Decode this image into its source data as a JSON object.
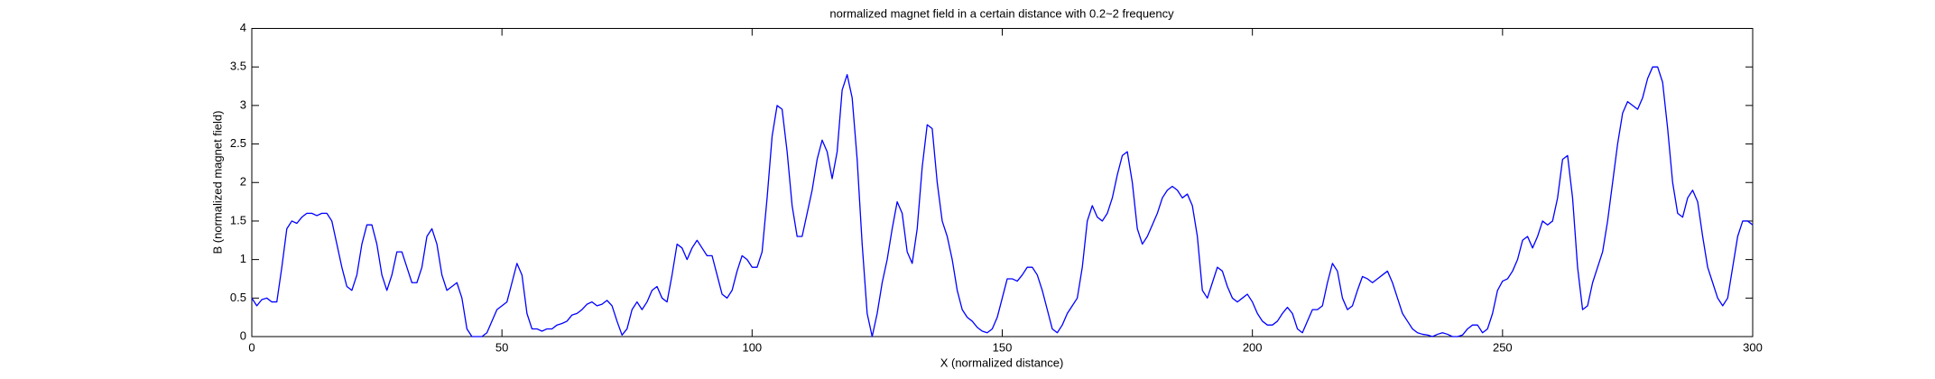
{
  "chart_data": {
    "type": "line",
    "title": "normalized magnet field in a certain distance with 0.2~2 frequency",
    "x_label": "X (normalized distance)",
    "y_label": "B (normalized magnet field)",
    "x": [
      0,
      1,
      2,
      3,
      4,
      5,
      6,
      7,
      8,
      9,
      10,
      11,
      12,
      13,
      14,
      15,
      16,
      17,
      18,
      19,
      20,
      21,
      22,
      23,
      24,
      25,
      26,
      27,
      28,
      29,
      30,
      31,
      32,
      33,
      34,
      35,
      36,
      37,
      38,
      39,
      40,
      41,
      42,
      43,
      44,
      45,
      46,
      47,
      48,
      49,
      50,
      51,
      52,
      53,
      54,
      55,
      56,
      57,
      58,
      59,
      60,
      61,
      62,
      63,
      64,
      65,
      66,
      67,
      68,
      69,
      70,
      71,
      72,
      73,
      74,
      75,
      76,
      77,
      78,
      79,
      80,
      81,
      82,
      83,
      84,
      85,
      86,
      87,
      88,
      89,
      90,
      91,
      92,
      93,
      94,
      95,
      96,
      97,
      98,
      99,
      100,
      101,
      102,
      103,
      104,
      105,
      106,
      107,
      108,
      109,
      110,
      111,
      112,
      113,
      114,
      115,
      116,
      117,
      118,
      119,
      120,
      121,
      122,
      123,
      124,
      125,
      126,
      127,
      128,
      129,
      130,
      131,
      132,
      133,
      134,
      135,
      136,
      137,
      138,
      139,
      140,
      141,
      142,
      143,
      144,
      145,
      146,
      147,
      148,
      149,
      150,
      151,
      152,
      153,
      154,
      155,
      156,
      157,
      158,
      159,
      160,
      161,
      162,
      163,
      164,
      165,
      166,
      167,
      168,
      169,
      170,
      171,
      172,
      173,
      174,
      175,
      176,
      177,
      178,
      179,
      180,
      181,
      182,
      183,
      184,
      185,
      186,
      187,
      188,
      189,
      190,
      191,
      192,
      193,
      194,
      195,
      196,
      197,
      198,
      199,
      200,
      201,
      202,
      203,
      204,
      205,
      206,
      207,
      208,
      209,
      210,
      211,
      212,
      213,
      214,
      215,
      216,
      217,
      218,
      219,
      220,
      221,
      222,
      223,
      224,
      225,
      226,
      227,
      228,
      229,
      230,
      231,
      232,
      233,
      234,
      235,
      236,
      237,
      238,
      239,
      240,
      241,
      242,
      243,
      244,
      245,
      246,
      247,
      248,
      249,
      250,
      251,
      252,
      253,
      254,
      255,
      256,
      257,
      258,
      259,
      260,
      261,
      262,
      263,
      264,
      265,
      266,
      267,
      268,
      269,
      270,
      271,
      272,
      273,
      274,
      275,
      276,
      277,
      278,
      279,
      280,
      281,
      282,
      283,
      284,
      285,
      286,
      287,
      288,
      289,
      290,
      291,
      292,
      293,
      294,
      295,
      296,
      297,
      298,
      299,
      300
    ],
    "series": [
      {
        "color": "#0000ff",
        "values": [
          0.5,
          0.4,
          0.48,
          0.5,
          0.45,
          0.45,
          0.9,
          1.4,
          1.5,
          1.47,
          1.55,
          1.6,
          1.6,
          1.57,
          1.6,
          1.6,
          1.5,
          1.2,
          0.9,
          0.65,
          0.6,
          0.8,
          1.2,
          1.45,
          1.45,
          1.2,
          0.8,
          0.6,
          0.8,
          1.1,
          1.1,
          0.9,
          0.7,
          0.7,
          0.9,
          1.3,
          1.4,
          1.2,
          0.8,
          0.6,
          0.65,
          0.7,
          0.5,
          0.1,
          0,
          0,
          0,
          0.05,
          0.2,
          0.35,
          0.4,
          0.45,
          0.7,
          0.95,
          0.8,
          0.3,
          0.1,
          0.1,
          0.07,
          0.1,
          0.1,
          0.15,
          0.17,
          0.2,
          0.28,
          0.3,
          0.35,
          0.42,
          0.45,
          0.4,
          0.42,
          0.47,
          0.4,
          0.2,
          0.02,
          0.1,
          0.35,
          0.45,
          0.35,
          0.45,
          0.6,
          0.65,
          0.5,
          0.45,
          0.8,
          1.2,
          1.15,
          1,
          1.15,
          1.25,
          1.15,
          1.05,
          1.05,
          0.8,
          0.55,
          0.5,
          0.6,
          0.85,
          1.05,
          1,
          0.9,
          0.9,
          1.1,
          1.8,
          2.6,
          3,
          2.95,
          2.4,
          1.7,
          1.3,
          1.3,
          1.6,
          1.9,
          2.3,
          2.55,
          2.4,
          2.05,
          2.4,
          3.2,
          3.4,
          3.1,
          2.3,
          1.2,
          0.3,
          0,
          0.3,
          0.7,
          1,
          1.4,
          1.75,
          1.6,
          1.1,
          0.95,
          1.4,
          2.2,
          2.75,
          2.7,
          2,
          1.5,
          1.3,
          1,
          0.6,
          0.35,
          0.25,
          0.2,
          0.12,
          0.07,
          0.05,
          0.1,
          0.25,
          0.5,
          0.75,
          0.75,
          0.72,
          0.8,
          0.9,
          0.9,
          0.8,
          0.6,
          0.35,
          0.1,
          0.05,
          0.15,
          0.3,
          0.4,
          0.5,
          0.9,
          1.5,
          1.7,
          1.55,
          1.5,
          1.6,
          1.8,
          2.1,
          2.35,
          2.4,
          2,
          1.4,
          1.2,
          1.3,
          1.45,
          1.6,
          1.8,
          1.9,
          1.95,
          1.9,
          1.8,
          1.85,
          1.7,
          1.3,
          0.6,
          0.5,
          0.7,
          0.9,
          0.85,
          0.65,
          0.5,
          0.45,
          0.5,
          0.55,
          0.45,
          0.3,
          0.2,
          0.15,
          0.15,
          0.2,
          0.3,
          0.38,
          0.3,
          0.1,
          0.05,
          0.2,
          0.35,
          0.35,
          0.4,
          0.7,
          0.95,
          0.85,
          0.5,
          0.35,
          0.4,
          0.6,
          0.78,
          0.75,
          0.7,
          0.75,
          0.8,
          0.85,
          0.7,
          0.5,
          0.3,
          0.2,
          0.1,
          0.05,
          0.03,
          0.02,
          0,
          0.03,
          0.05,
          0.03,
          0,
          0,
          0.02,
          0.1,
          0.15,
          0.15,
          0.05,
          0.1,
          0.3,
          0.6,
          0.72,
          0.75,
          0.85,
          1,
          1.25,
          1.3,
          1.15,
          1.3,
          1.5,
          1.45,
          1.5,
          1.8,
          2.3,
          2.35,
          1.8,
          0.9,
          0.35,
          0.4,
          0.7,
          0.9,
          1.1,
          1.5,
          2,
          2.5,
          2.9,
          3.05,
          3,
          2.95,
          3.1,
          3.35,
          3.5,
          3.5,
          3.3,
          2.7,
          2,
          1.6,
          1.55,
          1.8,
          1.9,
          1.75,
          1.3,
          0.9,
          0.7,
          0.5,
          0.4,
          0.5,
          0.9,
          1.3,
          1.5,
          1.5,
          1.45
        ]
      }
    ],
    "xlim": [
      0,
      300
    ],
    "xticks": [
      0,
      50,
      100,
      150,
      200,
      250,
      300
    ],
    "ylim": [
      0,
      4
    ],
    "yticks": [
      0,
      0.5,
      1,
      1.5,
      2,
      2.5,
      3,
      3.5,
      4
    ],
    "grid": false
  }
}
